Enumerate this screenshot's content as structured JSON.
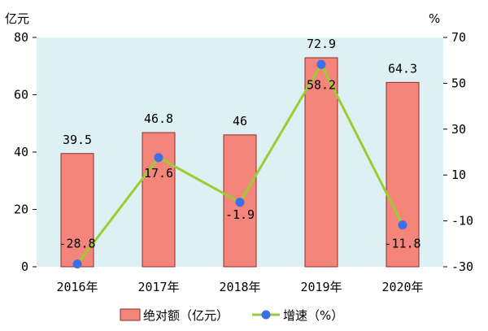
{
  "chart_data": {
    "type": "bar+line",
    "categories": [
      "2016年",
      "2017年",
      "2018年",
      "2019年",
      "2020年"
    ],
    "series": [
      {
        "name": "绝对额（亿元）",
        "type": "bar",
        "axis": "left",
        "values": [
          39.5,
          46.8,
          46.0,
          72.9,
          64.3
        ]
      },
      {
        "name": "增速（%）",
        "type": "line",
        "axis": "right",
        "values": [
          -28.8,
          17.6,
          -1.9,
          58.2,
          -11.8
        ]
      }
    ],
    "left_axis": {
      "unit": "亿元",
      "ylim": [
        0,
        80
      ],
      "ticks": [
        0,
        20,
        40,
        60,
        80
      ]
    },
    "right_axis": {
      "unit": "%",
      "ylim": [
        -30,
        70
      ],
      "ticks": [
        -30,
        -10,
        10,
        30,
        50,
        70
      ]
    },
    "legend_position": "bottom",
    "grid": false,
    "colors": {
      "bar_fill": "#F4857A",
      "bar_stroke": "#8B2E27",
      "line": "#9ACD32",
      "marker": "#3D6FE8",
      "plot_bg": "#DDF0F3"
    }
  }
}
